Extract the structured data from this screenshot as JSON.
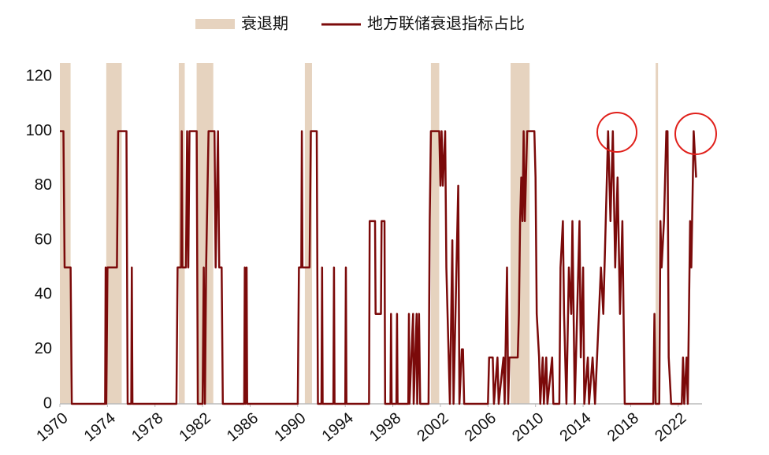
{
  "chart_data": {
    "type": "line",
    "xlim": [
      1970,
      2024
    ],
    "xticks": [
      1970,
      1974,
      1978,
      1982,
      1986,
      1990,
      1994,
      1998,
      2002,
      2006,
      2010,
      2014,
      2018,
      2022
    ],
    "ylim": [
      0,
      125
    ],
    "yticks": [
      0,
      20,
      40,
      60,
      80,
      100,
      120
    ],
    "grid": false,
    "legend": "top",
    "shading": {
      "name": "衰退期",
      "color": "#e6d3bf",
      "ranges": [
        [
          1970.0,
          1970.9
        ],
        [
          1973.9,
          1975.2
        ],
        [
          1980.0,
          1980.5
        ],
        [
          1981.5,
          1982.9
        ],
        [
          1990.6,
          1991.2
        ],
        [
          2001.2,
          2001.9
        ],
        [
          2007.9,
          2009.5
        ],
        [
          2020.1,
          2020.3
        ]
      ]
    },
    "series": [
      {
        "name": "地方联储衰退指标占比",
        "color": "#7b0a0a",
        "x": [
          1970.0,
          1970.3,
          1970.4,
          1970.9,
          1971.0,
          1973.8,
          1973.85,
          1973.9,
          1974.0,
          1974.8,
          1974.9,
          1975.6,
          1975.7,
          1976.0,
          1976.05,
          1976.1,
          1979.8,
          1979.9,
          1980.2,
          1980.25,
          1980.3,
          1980.6,
          1980.7,
          1980.8,
          1980.9,
          1981.5,
          1981.6,
          1982.0,
          1982.1,
          1982.2,
          1982.3,
          1982.5,
          1983.0,
          1983.1,
          1983.3,
          1983.4,
          1983.6,
          1983.7,
          1985.5,
          1985.55,
          1985.6,
          1985.7,
          1985.75,
          1990.0,
          1990.1,
          1990.3,
          1990.35,
          1990.4,
          1991.0,
          1991.1,
          1991.6,
          1991.7,
          1992.0,
          1992.05,
          1992.1,
          1993.0,
          1993.05,
          1993.1,
          1994.0,
          1994.05,
          1994.1,
          1996.0,
          1996.05,
          1996.5,
          1996.55,
          1997.0,
          1997.05,
          1997.3,
          1997.35,
          1997.8,
          1997.85,
          1997.9,
          1998.3,
          1998.35,
          1998.4,
          1999.3,
          1999.35,
          1999.4,
          1999.7,
          1999.75,
          2000.0,
          2000.05,
          2000.2,
          2000.3,
          2001.0,
          2001.1,
          2001.2,
          2001.9,
          2002.0,
          2002.1,
          2002.2,
          2002.4,
          2002.5,
          2002.8,
          2003.0,
          2003.1,
          2003.5,
          2003.6,
          2003.8,
          2003.9,
          2004.0,
          2006.0,
          2006.1,
          2006.4,
          2006.5,
          2006.8,
          2006.9,
          2007.3,
          2007.4,
          2007.6,
          2007.7,
          2007.8,
          2008.5,
          2008.6,
          2008.7,
          2008.8,
          2008.9,
          2009.0,
          2009.1,
          2009.3,
          2009.9,
          2010.0,
          2010.1,
          2010.3,
          2010.4,
          2010.6,
          2010.7,
          2010.9,
          2011.0,
          2011.4,
          2011.5,
          2012.0,
          2012.1,
          2012.3,
          2012.4,
          2012.6,
          2012.8,
          2013.0,
          2013.1,
          2013.3,
          2013.5,
          2013.6,
          2013.7,
          2013.8,
          2014.0,
          2014.1,
          2014.4,
          2014.5,
          2014.8,
          2015.0,
          2015.5,
          2015.7,
          2015.9,
          2016.1,
          2016.3,
          2016.5,
          2016.7,
          2016.9,
          2017.1,
          2017.3,
          2017.5,
          2019.9,
          2020.0,
          2020.1,
          2020.4,
          2020.5,
          2020.6,
          2020.8,
          2021.0,
          2021.1,
          2021.2,
          2021.4,
          2022.3,
          2022.4,
          2022.5,
          2022.7,
          2022.8,
          2023.0,
          2023.1,
          2023.3,
          2023.5
        ],
        "values": [
          100,
          100,
          50,
          50,
          0,
          0,
          50,
          0,
          50,
          50,
          100,
          100,
          0,
          0,
          50,
          0,
          0,
          50,
          50,
          100,
          50,
          50,
          100,
          50,
          100,
          100,
          0,
          0,
          50,
          0,
          50,
          100,
          100,
          50,
          100,
          50,
          50,
          0,
          0,
          50,
          0,
          50,
          0,
          0,
          50,
          50,
          100,
          50,
          50,
          100,
          100,
          0,
          0,
          50,
          0,
          0,
          50,
          0,
          0,
          50,
          0,
          0,
          67,
          67,
          33,
          33,
          67,
          67,
          0,
          0,
          33,
          0,
          0,
          33,
          0,
          0,
          33,
          0,
          33,
          0,
          33,
          0,
          33,
          0,
          0,
          67,
          100,
          100,
          80,
          100,
          80,
          100,
          50,
          0,
          60,
          0,
          80,
          0,
          20,
          20,
          0,
          0,
          17,
          17,
          0,
          17,
          0,
          17,
          0,
          50,
          0,
          17,
          17,
          33,
          67,
          83,
          67,
          100,
          67,
          100,
          100,
          83,
          33,
          17,
          0,
          17,
          0,
          17,
          0,
          17,
          0,
          0,
          50,
          67,
          33,
          0,
          50,
          33,
          67,
          0,
          33,
          50,
          67,
          17,
          50,
          0,
          17,
          0,
          17,
          0,
          50,
          33,
          67,
          100,
          67,
          100,
          50,
          83,
          33,
          67,
          0,
          0,
          33,
          0,
          0,
          67,
          50,
          67,
          100,
          100,
          17,
          0,
          0,
          17,
          0,
          17,
          0,
          67,
          50,
          100,
          83
        ]
      }
    ]
  }
}
